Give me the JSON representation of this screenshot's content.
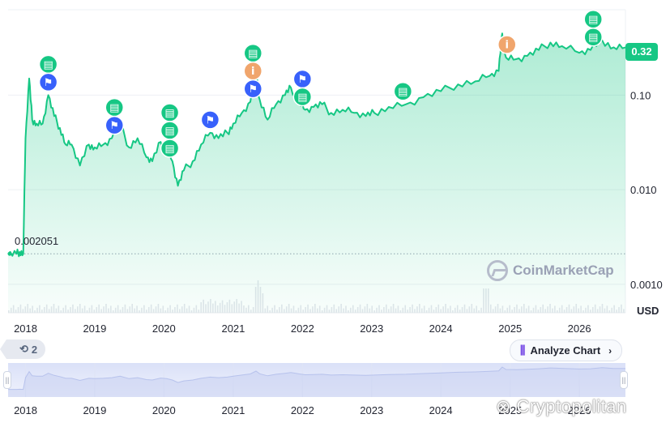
{
  "chart_data": {
    "type": "line",
    "scale": "log",
    "ylim": [
      0.0005,
      0.8
    ],
    "y_ticks": [
      {
        "label": "0.10",
        "value": 0.1
      },
      {
        "label": "0.010",
        "value": 0.01
      },
      {
        "label": "0.0010",
        "value": 0.001
      }
    ],
    "x_ticks": [
      "2018",
      "2019",
      "2020",
      "2021",
      "2022",
      "2023",
      "2024",
      "2025",
      "2026"
    ],
    "x_range": [
      "2017-10",
      "2026-09"
    ],
    "current_price": "0.32",
    "start_price_label": "0.002051",
    "currency": "USD",
    "series": [
      {
        "values": [
          [
            "2017-10-01",
            0.0021
          ],
          [
            "2017-11-15",
            0.0021
          ],
          [
            "2017-12-01",
            0.0022
          ],
          [
            "2017-12-20",
            0.0021
          ],
          [
            "2018-01-01",
            0.035
          ],
          [
            "2018-01-20",
            0.15
          ],
          [
            "2018-02-05",
            0.055
          ],
          [
            "2018-03-01",
            0.05
          ],
          [
            "2018-04-01",
            0.05
          ],
          [
            "2018-05-01",
            0.1
          ],
          [
            "2018-06-01",
            0.06
          ],
          [
            "2018-07-01",
            0.045
          ],
          [
            "2018-08-01",
            0.03
          ],
          [
            "2018-09-01",
            0.03
          ],
          [
            "2018-10-15",
            0.018
          ],
          [
            "2018-12-01",
            0.03
          ],
          [
            "2019-01-01",
            0.028
          ],
          [
            "2019-02-15",
            0.03
          ],
          [
            "2019-04-01",
            0.035
          ],
          [
            "2019-05-15",
            0.05
          ],
          [
            "2019-07-01",
            0.028
          ],
          [
            "2019-08-15",
            0.035
          ],
          [
            "2019-10-01",
            0.022
          ],
          [
            "2019-11-01",
            0.02
          ],
          [
            "2019-12-15",
            0.032
          ],
          [
            "2020-01-15",
            0.028
          ],
          [
            "2020-02-15",
            0.02
          ],
          [
            "2020-03-15",
            0.011
          ],
          [
            "2020-04-15",
            0.016
          ],
          [
            "2020-06-01",
            0.02
          ],
          [
            "2020-07-15",
            0.03
          ],
          [
            "2020-09-01",
            0.04
          ],
          [
            "2020-10-15",
            0.035
          ],
          [
            "2020-12-01",
            0.04
          ],
          [
            "2021-01-01",
            0.05
          ],
          [
            "2021-02-15",
            0.065
          ],
          [
            "2021-04-01",
            0.085
          ],
          [
            "2021-05-01",
            0.17
          ],
          [
            "2021-05-20",
            0.09
          ],
          [
            "2021-07-01",
            0.055
          ],
          [
            "2021-08-15",
            0.08
          ],
          [
            "2021-10-01",
            0.1
          ],
          [
            "2021-11-01",
            0.12
          ],
          [
            "2021-12-15",
            0.085
          ],
          [
            "2022-01-15",
            0.07
          ],
          [
            "2022-03-01",
            0.075
          ],
          [
            "2022-04-15",
            0.08
          ],
          [
            "2022-06-01",
            0.065
          ],
          [
            "2022-08-01",
            0.07
          ],
          [
            "2022-10-01",
            0.065
          ],
          [
            "2022-12-01",
            0.06
          ],
          [
            "2023-01-15",
            0.065
          ],
          [
            "2023-04-01",
            0.075
          ],
          [
            "2023-07-01",
            0.08
          ],
          [
            "2023-10-01",
            0.095
          ],
          [
            "2024-01-01",
            0.11
          ],
          [
            "2024-04-01",
            0.13
          ],
          [
            "2024-07-01",
            0.14
          ],
          [
            "2024-09-15",
            0.16
          ],
          [
            "2024-11-01",
            0.18
          ],
          [
            "2024-11-20",
            0.45
          ],
          [
            "2024-12-10",
            0.25
          ],
          [
            "2025-02-01",
            0.24
          ],
          [
            "2025-04-01",
            0.26
          ],
          [
            "2025-06-01",
            0.3
          ],
          [
            "2025-08-01",
            0.36
          ],
          [
            "2025-10-01",
            0.33
          ],
          [
            "2026-01-01",
            0.28
          ],
          [
            "2026-03-01",
            0.3
          ],
          [
            "2026-05-01",
            0.38
          ],
          [
            "2026-07-01",
            0.32
          ],
          [
            "2026-09-01",
            0.32
          ]
        ]
      }
    ],
    "events": [
      {
        "date": "2018-05-01",
        "icons": [
          "doc",
          "flag"
        ]
      },
      {
        "date": "2019-04-15",
        "icons": [
          "doc",
          "flag"
        ]
      },
      {
        "date": "2020-02-01",
        "icons": [
          "doc",
          "doc",
          "doc"
        ]
      },
      {
        "date": "2020-09-01",
        "icons": [
          "flag"
        ]
      },
      {
        "date": "2021-04-15",
        "icons": [
          "doc",
          "info",
          "flag"
        ]
      },
      {
        "date": "2022-01-01",
        "icons": [
          "flag",
          "doc"
        ]
      },
      {
        "date": "2023-06-15",
        "icons": [
          "doc"
        ]
      },
      {
        "date": "2024-12-15",
        "icons": [
          "info"
        ]
      },
      {
        "date": "2026-03-15",
        "icons": [
          "doc",
          "doc"
        ]
      }
    ],
    "colors": {
      "line": "#16c784",
      "doc_icon": "#16c784",
      "flag_icon": "#3861fb",
      "info_icon": "#f0a56c",
      "navigator": "#e8ecfb"
    }
  },
  "watermark": "CoinMarketCap",
  "history_count": "2",
  "analyze_button": "Analyze Chart",
  "credit": "⊗ Cryptopolitan"
}
